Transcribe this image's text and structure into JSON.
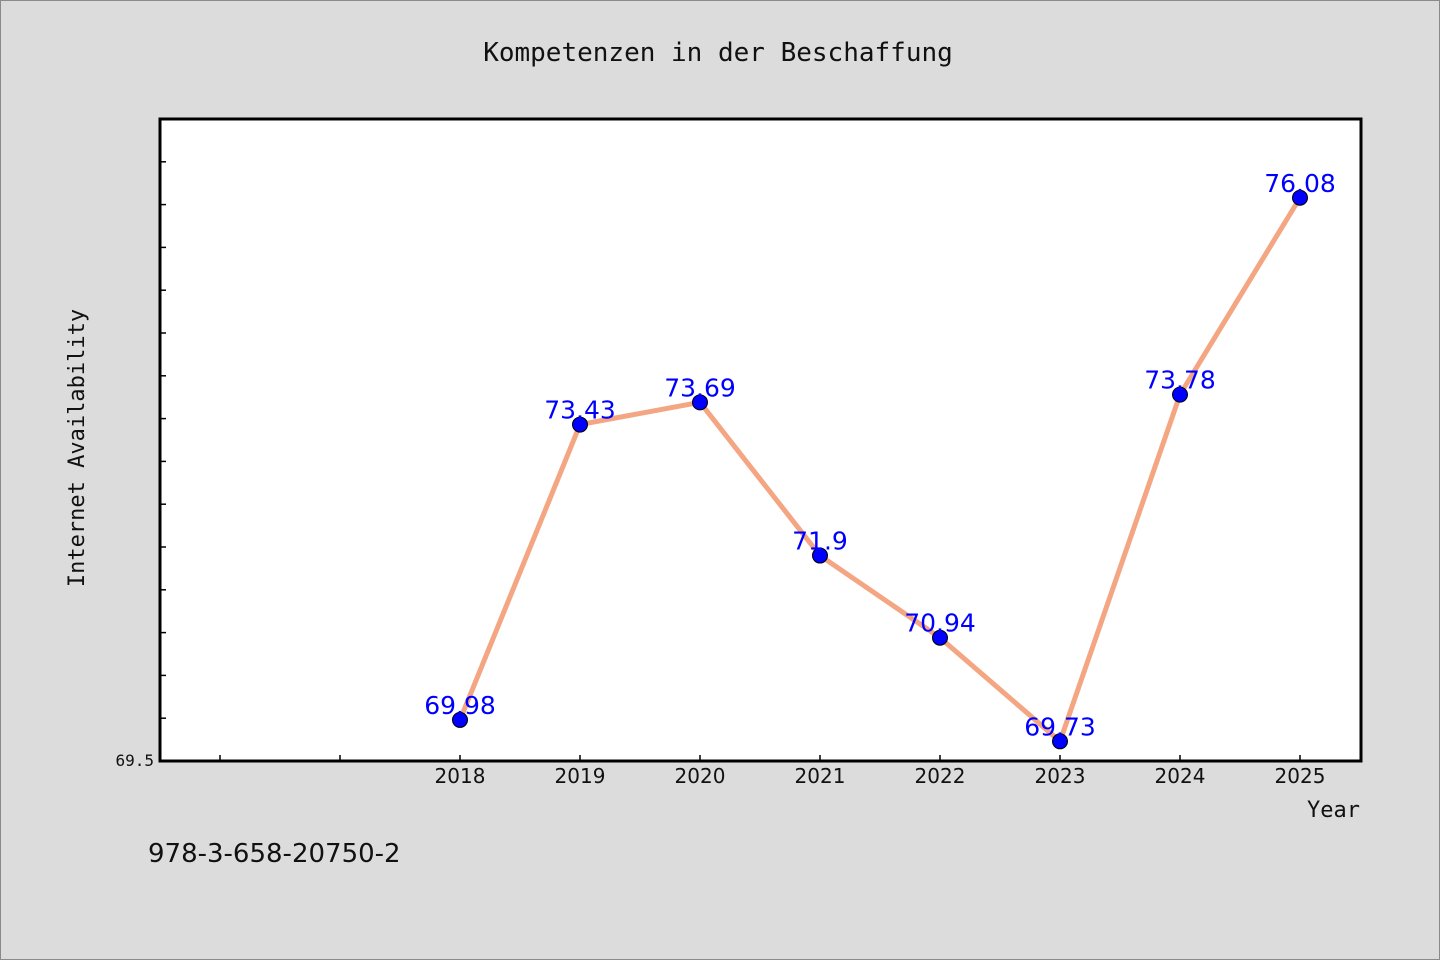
{
  "chart_data": {
    "type": "line",
    "title": "Kompetenzen in der Beschaffung",
    "xlabel": "Year",
    "ylabel": "Internet Availability",
    "x": [
      "2018",
      "2019",
      "2020",
      "2021",
      "2022",
      "2023",
      "2024",
      "2025"
    ],
    "series": [
      {
        "values": [
          69.98,
          73.43,
          73.69,
          71.9,
          70.94,
          69.73,
          73.78,
          76.08
        ],
        "data_labels": [
          "69.98",
          "73.43",
          "73.69",
          "71.9",
          "70.94",
          "69.73",
          "73.78",
          "76.08"
        ]
      }
    ],
    "ylim": [
      69.5,
      77.0
    ],
    "yticks_labeled": [
      "69.5"
    ],
    "grid": false,
    "line_color": "#f4a582",
    "marker_color": "#0000ff",
    "label_color": "#0000ff"
  },
  "footer": {
    "isbn": "978-3-658-20750-2"
  }
}
